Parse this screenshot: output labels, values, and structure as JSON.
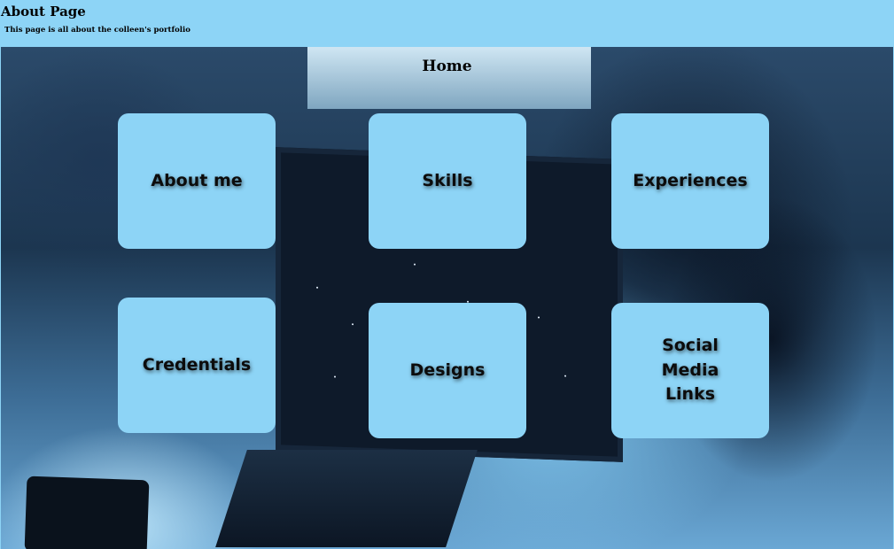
{
  "header": {
    "title": "About Page",
    "subtitle": "This page is all about the colleen's portfolio"
  },
  "hero": {
    "title": "Home"
  },
  "tiles": [
    {
      "label": "About me"
    },
    {
      "label": "Skills"
    },
    {
      "label": "Experiences"
    },
    {
      "label": "Credentials"
    },
    {
      "label": "Designs"
    },
    {
      "label": "Social\nMedia\nLinks"
    }
  ],
  "colors": {
    "accent": "#8dd4f6",
    "text": "#000000"
  }
}
